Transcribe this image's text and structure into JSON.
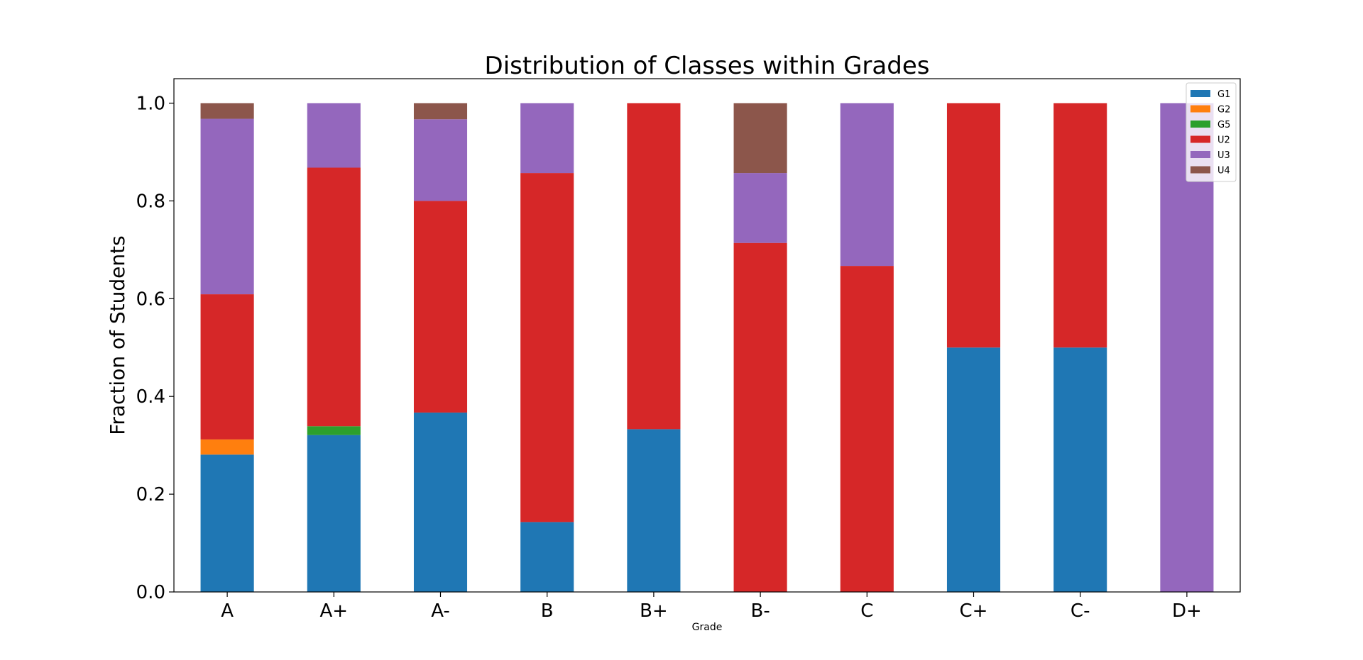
{
  "chart_data": {
    "type": "bar",
    "stacked": true,
    "title": "Distribution of Classes within Grades",
    "xlabel": "Grade",
    "ylabel": "Fraction of Students",
    "ylim": [
      0,
      1.05
    ],
    "yticks": [
      0.0,
      0.2,
      0.4,
      0.6,
      0.8,
      1.0
    ],
    "ytick_labels": [
      "0.0",
      "0.2",
      "0.4",
      "0.6",
      "0.8",
      "1.0"
    ],
    "categories": [
      "A",
      "A+",
      "A-",
      "B",
      "B+",
      "B-",
      "C",
      "C+",
      "C-",
      "D+"
    ],
    "series": [
      {
        "name": "G1",
        "color": "#1f77b4",
        "values": [
          0.281,
          0.321,
          0.367,
          0.143,
          0.333,
          0.0,
          0.0,
          0.5,
          0.5,
          0.0
        ]
      },
      {
        "name": "G2",
        "color": "#ff7f0e",
        "values": [
          0.031,
          0.0,
          0.0,
          0.0,
          0.0,
          0.0,
          0.0,
          0.0,
          0.0,
          0.0
        ]
      },
      {
        "name": "G5",
        "color": "#2ca02c",
        "values": [
          0.0,
          0.018,
          0.0,
          0.0,
          0.0,
          0.0,
          0.0,
          0.0,
          0.0,
          0.0
        ]
      },
      {
        "name": "U2",
        "color": "#d62728",
        "values": [
          0.297,
          0.529,
          0.433,
          0.714,
          0.667,
          0.714,
          0.667,
          0.5,
          0.5,
          0.0
        ]
      },
      {
        "name": "U3",
        "color": "#9467bd",
        "values": [
          0.359,
          0.132,
          0.167,
          0.143,
          0.0,
          0.143,
          0.333,
          0.0,
          0.0,
          1.0
        ]
      },
      {
        "name": "U4",
        "color": "#8c564b",
        "values": [
          0.032,
          0.0,
          0.033,
          0.0,
          0.0,
          0.143,
          0.0,
          0.0,
          0.0,
          0.0
        ]
      }
    ],
    "grid": false,
    "legend_position": "top-right"
  }
}
